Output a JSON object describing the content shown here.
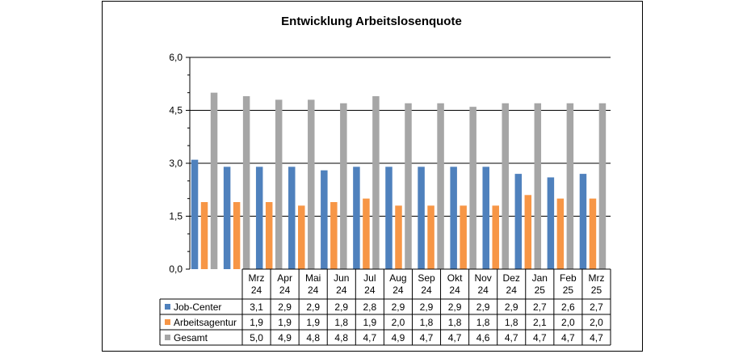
{
  "chart_data": {
    "type": "bar",
    "title": "Entwicklung  Arbeitslosenquote",
    "xlabel": "",
    "ylabel": "",
    "ylim": [
      0,
      6
    ],
    "yticks": [
      "0,0",
      "1,5",
      "3,0",
      "4,5",
      "6,0"
    ],
    "grid": true,
    "legend": "table",
    "categories": [
      [
        "Mrz",
        "24"
      ],
      [
        "Apr",
        "24"
      ],
      [
        "Mai",
        "24"
      ],
      [
        "Jun",
        "24"
      ],
      [
        "Jul",
        "24"
      ],
      [
        "Aug",
        "24"
      ],
      [
        "Sep",
        "24"
      ],
      [
        "Okt",
        "24"
      ],
      [
        "Nov",
        "24"
      ],
      [
        "Dez",
        "24"
      ],
      [
        "Jan",
        "25"
      ],
      [
        "Feb",
        "25"
      ],
      [
        "Mrz",
        "25"
      ]
    ],
    "series": [
      {
        "name": "Job-Center",
        "color": "#4f81bd",
        "values": [
          3.1,
          2.9,
          2.9,
          2.9,
          2.8,
          2.9,
          2.9,
          2.9,
          2.9,
          2.9,
          2.7,
          2.6,
          2.7
        ],
        "labels": [
          "3,1",
          "2,9",
          "2,9",
          "2,9",
          "2,8",
          "2,9",
          "2,9",
          "2,9",
          "2,9",
          "2,9",
          "2,7",
          "2,6",
          "2,7"
        ]
      },
      {
        "name": "Arbeitsagentur",
        "color": "#f79646",
        "values": [
          1.9,
          1.9,
          1.9,
          1.8,
          1.9,
          2.0,
          1.8,
          1.8,
          1.8,
          1.8,
          2.1,
          2.0,
          2.0
        ],
        "labels": [
          "1,9",
          "1,9",
          "1,9",
          "1,8",
          "1,9",
          "2,0",
          "1,8",
          "1,8",
          "1,8",
          "1,8",
          "2,1",
          "2,0",
          "2,0"
        ]
      },
      {
        "name": "Gesamt",
        "color": "#a6a6a6",
        "values": [
          5.0,
          4.9,
          4.8,
          4.8,
          4.7,
          4.9,
          4.7,
          4.7,
          4.6,
          4.7,
          4.7,
          4.7,
          4.7
        ],
        "labels": [
          "5,0",
          "4,9",
          "4,8",
          "4,8",
          "4,7",
          "4,9",
          "4,7",
          "4,7",
          "4,6",
          "4,7",
          "4,7",
          "4,7",
          "4,7"
        ]
      }
    ]
  }
}
